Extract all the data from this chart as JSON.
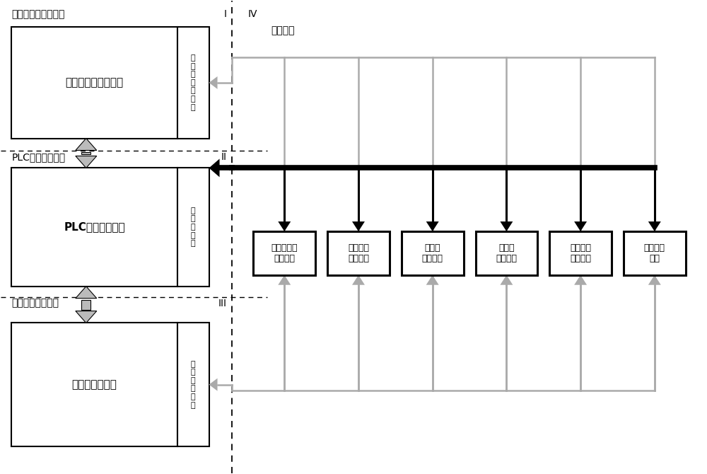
{
  "fig_width": 10.0,
  "fig_height": 6.7,
  "bg_color": "#ffffff",
  "label_layer1": "继电器电路逻辑联锁",
  "label_layer2": "PLC层面逻辑联锁",
  "label_layer3": "软件层面逻辑联锁",
  "label_layer4": "IV",
  "label_other": "其它设备",
  "label_roman1": "I",
  "label_roman2": "II",
  "label_roman3": "III",
  "box1_main": "继电器组合控制单元",
  "box1_side": "继\n电\n器\n联\n锁\n电\n路",
  "box2_main": "PLC联锁控制单元",
  "box2_side": "梯\n形\n图\n逻\n辑",
  "box3_main": "计算机主控系统",
  "box3_side": "系\n统\n软\n件\n逻\n辑",
  "device_boxes": [
    "登顶作业卡\n发放单元",
    "隔离开关\n控制单元",
    "接地杆\n控制单元",
    "安全门\n控制单元",
    "色灯信号\n引导单元",
    "安全警示\n单元"
  ],
  "gray_color": "#aaaaaa",
  "dark_gray": "#888888",
  "arrow_gray": "#c0c0c0"
}
